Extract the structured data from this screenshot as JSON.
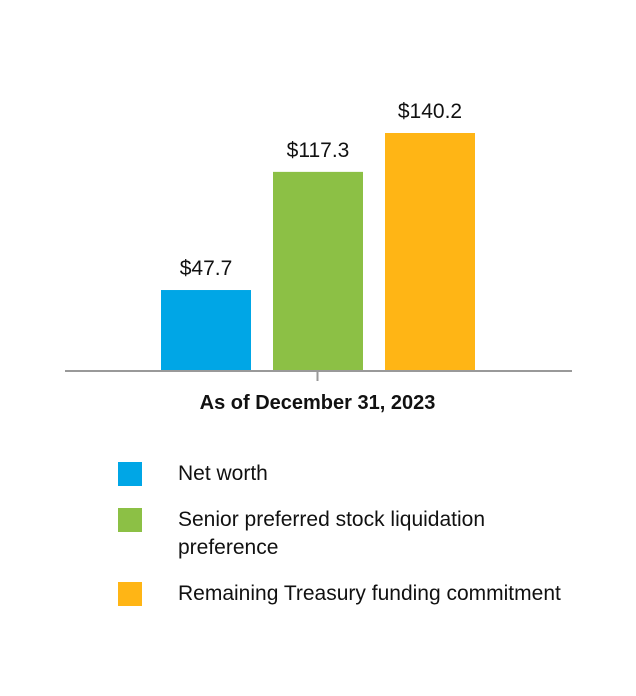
{
  "chart_data": {
    "type": "bar",
    "categories": [
      "As of December 31, 2023"
    ],
    "unit_prefix": "$",
    "series": [
      {
        "name": "Net worth",
        "values": [
          47.7
        ],
        "color": "#00a6e6"
      },
      {
        "name": "Senior preferred stock liquidation preference",
        "values": [
          117.3
        ],
        "color": "#8cc045"
      },
      {
        "name": "Remaining Treasury funding commitment",
        "values": [
          140.2
        ],
        "color": "#ffb515"
      }
    ],
    "data_labels": [
      "$47.7",
      "$117.3",
      "$140.2"
    ],
    "title": "",
    "xlabel": "",
    "ylabel": "",
    "ylim": [
      0,
      140.2
    ],
    "grid": false,
    "legend": "bottom"
  }
}
